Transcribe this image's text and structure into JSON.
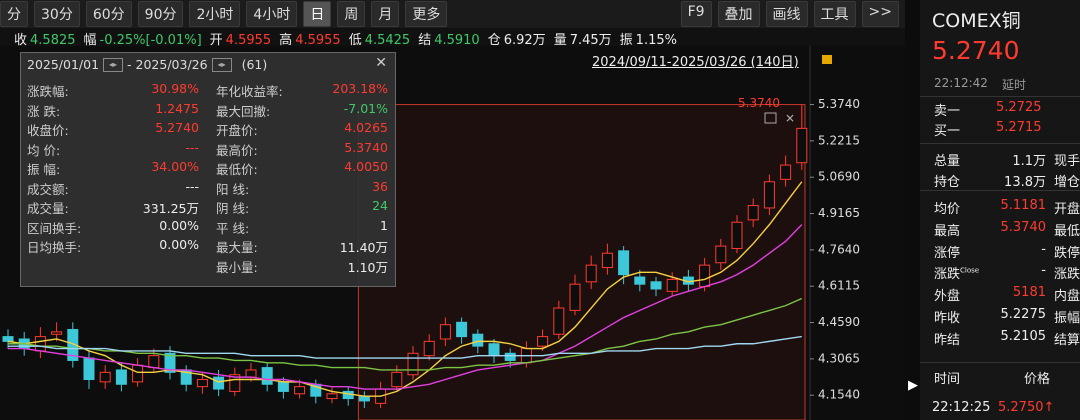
{
  "toolbar": {
    "periods": [
      "分",
      "30分",
      "60分",
      "90分",
      "2小时",
      "4小时",
      "日",
      "周",
      "月",
      "更多"
    ],
    "tools": [
      "F9",
      "叠加",
      "画线",
      "工具",
      ">>"
    ]
  },
  "info_bar": [
    {
      "label": "收",
      "value": "4.5825"
    },
    {
      "label": "幅",
      "value": "-0.25%[-0.01%]"
    },
    {
      "label": "开",
      "value": "4.5955"
    },
    {
      "label": "高",
      "value": "4.5955"
    },
    {
      "label": "低",
      "value": "4.5425"
    },
    {
      "label": "结",
      "value": "4.5910"
    },
    {
      "label": "仓",
      "value": "6.92万"
    },
    {
      "label": "量",
      "value": "7.45万"
    },
    {
      "label": "振",
      "value": "1.15%"
    }
  ],
  "date_range": "2024/09/11-2025/03/26 (140日)",
  "stats": {
    "start": "2025/01/01",
    "end": "- 2025/03/26",
    "count": "(61)",
    "left": [
      [
        "涨跌幅:",
        "30.98%"
      ],
      [
        "涨 跌:",
        "1.2475"
      ],
      [
        "收盘价:",
        "5.2740"
      ],
      [
        "均 价:",
        "---"
      ],
      [
        "振 幅:",
        "34.00%"
      ],
      [
        "成交额:",
        "---"
      ],
      [
        "成交量:",
        "331.25万"
      ],
      [
        "区间换手:",
        "0.00%"
      ],
      [
        "日均换手:",
        "0.00%"
      ]
    ],
    "right": [
      [
        "年化收益率:",
        "203.18%"
      ],
      [
        "最大回撤:",
        "-7.01%"
      ],
      [
        "开盘价:",
        "4.0265"
      ],
      [
        "最高价:",
        "5.3740"
      ],
      [
        "最低价:",
        "4.0050"
      ],
      [
        "阳 线:",
        "36"
      ],
      [
        "阴 线:",
        "24"
      ],
      [
        "平 线:",
        "1"
      ],
      [
        "最大量:",
        "11.40万"
      ],
      [
        "最小量:",
        "1.10万"
      ]
    ]
  },
  "chart_data": {
    "type": "candlestick",
    "annotation": "5.3740",
    "up_color": "#ff3b30",
    "down_color": "#3cc8d8",
    "open": [
      4.4,
      4.39,
      4.34,
      4.41,
      4.43,
      4.31,
      4.21,
      4.26,
      4.21,
      4.27,
      4.33,
      4.26,
      4.19,
      4.23,
      4.17,
      4.23,
      4.27,
      4.21,
      4.16,
      4.2,
      4.14,
      4.17,
      4.15,
      4.12,
      4.19,
      4.24,
      4.32,
      4.39,
      4.46,
      4.41,
      4.37,
      4.33,
      4.29,
      4.36,
      4.41,
      4.51,
      4.63,
      4.69,
      4.76,
      4.65,
      4.63,
      4.59,
      4.65,
      4.61,
      4.71,
      4.77,
      4.89,
      4.94,
      5.06,
      5.13
    ],
    "high": [
      4.43,
      4.42,
      4.44,
      4.46,
      4.46,
      4.34,
      4.28,
      4.29,
      4.31,
      4.35,
      4.36,
      4.28,
      4.25,
      4.26,
      4.27,
      4.29,
      4.29,
      4.23,
      4.22,
      4.22,
      4.19,
      4.19,
      4.17,
      4.21,
      4.28,
      4.36,
      4.41,
      4.48,
      4.48,
      4.43,
      4.39,
      4.35,
      4.38,
      4.43,
      4.55,
      4.66,
      4.74,
      4.79,
      4.78,
      4.68,
      4.65,
      4.67,
      4.68,
      4.73,
      4.81,
      4.91,
      4.98,
      5.08,
      5.16,
      5.374
    ],
    "low": [
      4.35,
      4.32,
      4.31,
      4.38,
      4.27,
      4.18,
      4.18,
      4.17,
      4.19,
      4.25,
      4.22,
      4.17,
      4.16,
      4.15,
      4.15,
      4.21,
      4.17,
      4.14,
      4.14,
      4.12,
      4.12,
      4.11,
      4.1,
      4.1,
      4.17,
      4.22,
      4.3,
      4.36,
      4.37,
      4.33,
      4.29,
      4.27,
      4.27,
      4.34,
      4.39,
      4.49,
      4.6,
      4.66,
      4.62,
      4.59,
      4.57,
      4.57,
      4.59,
      4.59,
      4.68,
      4.75,
      4.86,
      4.91,
      5.03,
      5.1
    ],
    "close": [
      4.38,
      4.35,
      4.4,
      4.42,
      4.3,
      4.22,
      4.25,
      4.2,
      4.28,
      4.32,
      4.25,
      4.2,
      4.22,
      4.18,
      4.24,
      4.26,
      4.2,
      4.17,
      4.19,
      4.15,
      4.16,
      4.14,
      4.13,
      4.18,
      4.25,
      4.33,
      4.38,
      4.45,
      4.4,
      4.36,
      4.32,
      4.3,
      4.35,
      4.4,
      4.52,
      4.62,
      4.7,
      4.75,
      4.66,
      4.62,
      4.6,
      4.64,
      4.62,
      4.7,
      4.78,
      4.88,
      4.95,
      5.05,
      5.12,
      5.274
    ],
    "lines": [
      {
        "color": "#f5d142",
        "values": [
          4.38,
          4.37,
          4.38,
          4.39,
          4.37,
          4.34,
          4.32,
          4.28,
          4.25,
          4.25,
          4.26,
          4.25,
          4.24,
          4.21,
          4.22,
          4.22,
          4.22,
          4.21,
          4.21,
          4.19,
          4.17,
          4.16,
          4.15,
          4.15,
          4.17,
          4.21,
          4.26,
          4.32,
          4.36,
          4.38,
          4.38,
          4.37,
          4.35,
          4.35,
          4.38,
          4.44,
          4.52,
          4.6,
          4.65,
          4.67,
          4.67,
          4.65,
          4.63,
          4.64,
          4.67,
          4.72,
          4.79,
          4.87,
          4.96,
          5.05
        ]
      },
      {
        "color": "#e040e0",
        "values": [
          4.35,
          4.35,
          4.34,
          4.33,
          4.32,
          4.31,
          4.3,
          4.29,
          4.28,
          4.27,
          4.26,
          4.26,
          4.25,
          4.24,
          4.23,
          4.23,
          4.22,
          4.22,
          4.21,
          4.2,
          4.19,
          4.19,
          4.18,
          4.18,
          4.18,
          4.19,
          4.2,
          4.22,
          4.24,
          4.26,
          4.27,
          4.28,
          4.29,
          4.3,
          4.33,
          4.36,
          4.4,
          4.44,
          4.48,
          4.51,
          4.54,
          4.57,
          4.59,
          4.61,
          4.63,
          4.66,
          4.7,
          4.75,
          4.8,
          4.87
        ]
      },
      {
        "color": "#7cc443",
        "values": [
          4.37,
          4.37,
          4.36,
          4.36,
          4.35,
          4.35,
          4.34,
          4.34,
          4.33,
          4.33,
          4.32,
          4.32,
          4.31,
          4.31,
          4.3,
          4.3,
          4.29,
          4.29,
          4.28,
          4.28,
          4.27,
          4.27,
          4.27,
          4.26,
          4.26,
          4.26,
          4.26,
          4.27,
          4.27,
          4.28,
          4.28,
          4.29,
          4.29,
          4.3,
          4.31,
          4.32,
          4.33,
          4.35,
          4.36,
          4.38,
          4.39,
          4.41,
          4.42,
          4.44,
          4.45,
          4.47,
          4.49,
          4.51,
          4.53,
          4.56
        ]
      },
      {
        "color": "#9fd8f0",
        "values": [
          4.36,
          4.36,
          4.36,
          4.35,
          4.35,
          4.35,
          4.35,
          4.34,
          4.34,
          4.34,
          4.34,
          4.33,
          4.33,
          4.33,
          4.33,
          4.32,
          4.32,
          4.32,
          4.32,
          4.31,
          4.31,
          4.31,
          4.31,
          4.31,
          4.31,
          4.31,
          4.31,
          4.31,
          4.31,
          4.32,
          4.32,
          4.32,
          4.32,
          4.32,
          4.33,
          4.33,
          4.33,
          4.34,
          4.34,
          4.34,
          4.35,
          4.35,
          4.35,
          4.36,
          4.36,
          4.37,
          4.37,
          4.38,
          4.39,
          4.4
        ]
      }
    ],
    "ylim": [
      4.05,
      5.54
    ],
    "yticks": [
      {
        "value": 5.374,
        "label": "5.3740"
      },
      {
        "value": 5.2215,
        "label": "5.2215"
      },
      {
        "value": 5.069,
        "label": "5.0690"
      },
      {
        "value": 4.9165,
        "label": "4.9165"
      },
      {
        "value": 4.764,
        "label": "4.7640"
      },
      {
        "value": 4.6115,
        "label": "4.6115"
      },
      {
        "value": 4.459,
        "label": "4.4590"
      },
      {
        "value": 4.3065,
        "label": "4.3065"
      },
      {
        "value": 4.154,
        "label": "4.1540"
      }
    ]
  },
  "quote": {
    "name": "COMEX铜",
    "price": "5.2740",
    "time": "22:12:42",
    "delay": "延时",
    "book": [
      [
        "卖一",
        "5.2725"
      ],
      [
        "买一",
        "5.2715"
      ]
    ],
    "rows": [
      [
        "总量",
        "1.1万",
        "现手"
      ],
      [
        "持仓",
        "13.8万",
        "增仓"
      ],
      [
        "均价",
        "5.1181",
        "开盘"
      ],
      [
        "最高",
        "5.3740",
        "最低"
      ],
      [
        "涨停",
        "-",
        "跌停"
      ],
      [
        "涨跌",
        "-",
        "涨跌"
      ],
      [
        "外盘",
        "5181",
        "内盘"
      ],
      [
        "昨收",
        "5.2275",
        "振幅"
      ],
      [
        "昨结",
        "5.2105",
        "结算"
      ]
    ],
    "close_mark": "Close",
    "ticks_header": [
      "时间",
      "价格"
    ],
    "tick": [
      "22:12:25",
      "5.2750↑"
    ]
  }
}
